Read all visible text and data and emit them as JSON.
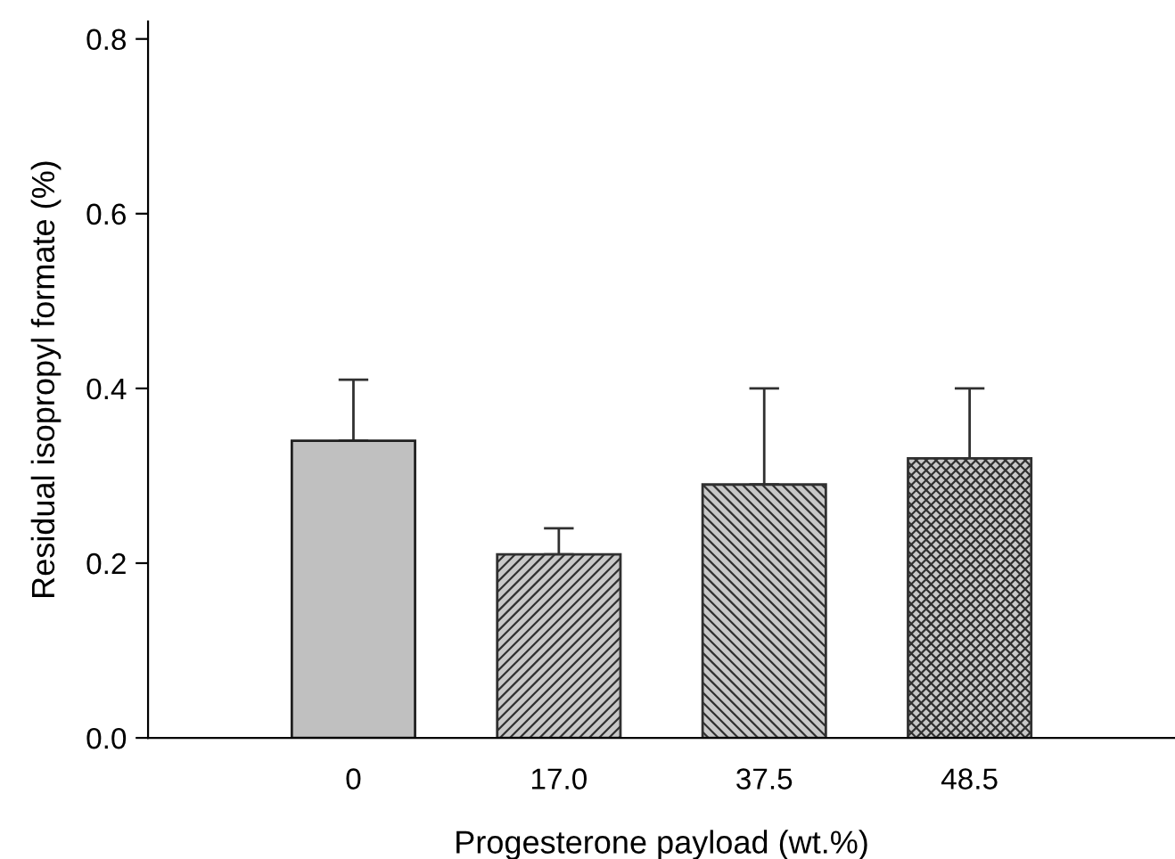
{
  "chart_data": {
    "type": "bar",
    "xlabel": "Progesterone payload (wt.%)",
    "ylabel": "Residual isopropyl formate (%)",
    "categories": [
      "0",
      "17.0",
      "37.5",
      "48.5"
    ],
    "values": [
      0.34,
      0.21,
      0.29,
      0.32
    ],
    "errors": [
      [
        0.34,
        0.41
      ],
      [
        0.21,
        0.24
      ],
      [
        0.29,
        0.4
      ],
      [
        0.32,
        0.4
      ]
    ],
    "colors": [
      "#c0c0c0",
      "#303030",
      "#303030",
      "#303030"
    ],
    "ylim": [
      0,
      0.82
    ],
    "yticks": [
      {
        "value": 0,
        "label": "0.0"
      },
      0.2,
      0.4,
      0.6,
      0.8
    ],
    "grid": false,
    "legend": false
  }
}
